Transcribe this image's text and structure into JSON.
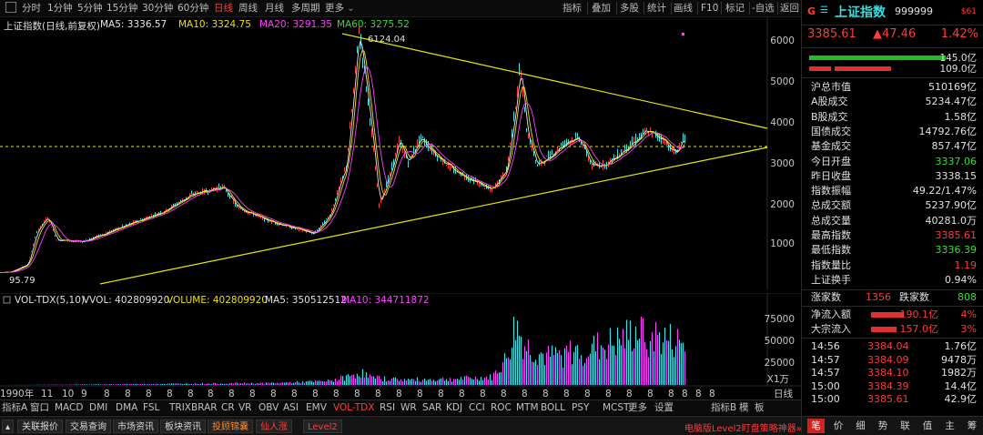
{
  "period_tabs": [
    "分时",
    "1分钟",
    "5分钟",
    "15分钟",
    "30分钟",
    "60分钟",
    "日线",
    "周线",
    "月线",
    "多周期",
    "更多"
  ],
  "period_active": "日线",
  "toolbar": [
    "指标",
    "叠加",
    "多股",
    "统计",
    "画线",
    "F10",
    "标记",
    "-自选",
    "返回"
  ],
  "ma_legend": {
    "title": "上证指数(日线,前复权)",
    "ma5": "MA5: 3336.57",
    "ma10": "MA10: 3324.75",
    "ma20": "MA20: 3291.35",
    "ma60": "MA60: 3275.52",
    "colors": {
      "ma5": "#e8e8e8",
      "ma10": "#f0e000",
      "ma20": "#ff40ff",
      "ma60": "#30e030"
    }
  },
  "price_axis": [
    "6000",
    "5000",
    "4000",
    "3000",
    "2000",
    "1000"
  ],
  "annotations": {
    "high": "6124.04",
    "low": "95.79"
  },
  "volume": {
    "legend_prefix": "VOL-TDX(5,10)",
    "vvol": "VVOL: 402809920",
    "volume": "VOLUME: 402809920",
    "ma5": "MA5: 350512512",
    "ma10": "MA10: 344711872",
    "axis": [
      "75000",
      "50000",
      "25000"
    ],
    "unit": "X1万"
  },
  "date_axis": [
    "1990年",
    "11",
    "10",
    "9",
    "8",
    "8",
    "8",
    "8",
    "8",
    "8",
    "8",
    "8",
    "8",
    "8",
    "8",
    "8",
    "8",
    "8",
    "8",
    "8",
    "8",
    "8",
    "8",
    "8",
    "8",
    "8",
    "8",
    "8",
    "8",
    "8",
    "8",
    "8",
    "8",
    "8",
    "8"
  ],
  "date_axis_right": "日线",
  "indicator_tabs": [
    "指标A",
    "窗口",
    "MACD",
    "DMI",
    "DMA",
    "FSL",
    "TRIX",
    "BRAR",
    "CR",
    "VR",
    "OBV",
    "ASI",
    "EMV",
    "VOL-TDX",
    "RSI",
    "WR",
    "SAR",
    "KDJ",
    "CCI",
    "ROC",
    "MTM",
    "BOLL",
    "PSY",
    "MCST",
    "更多",
    "设置"
  ],
  "indicator_active": "VOL-TDX",
  "indicator_right": [
    "指标B",
    "模",
    "板"
  ],
  "bottom_tabs": [
    "关联报价",
    "交易查询",
    "市场资讯",
    "板块资讯",
    "投顾锦囊",
    "仙人涨",
    "Level2"
  ],
  "bottom_promo": "电脑版Level2盯盘策略神器»",
  "right_panel": {
    "logo": "G",
    "name": "上证指数",
    "code": "999999",
    "badge": "$61",
    "price": "3385.61",
    "change": "▲47.46",
    "change_pct": "1.42%",
    "bar_up": "145.0亿",
    "bar_down": "109.0亿",
    "stats": [
      {
        "label": "沪总市值",
        "value": "510169亿",
        "color": "#e0e0e0"
      },
      {
        "label": "A股成交",
        "value": "5234.47亿",
        "color": "#e0e0e0"
      },
      {
        "label": "B股成交",
        "value": "1.58亿",
        "color": "#e0e0e0"
      },
      {
        "label": "国债成交",
        "value": "14792.76亿",
        "color": "#e0e0e0"
      },
      {
        "label": "基金成交",
        "value": "857.47亿",
        "color": "#e0e0e0"
      },
      {
        "label": "今日开盘",
        "value": "3337.06",
        "color": "#30e030"
      },
      {
        "label": "昨日收盘",
        "value": "3338.15",
        "color": "#e0e0e0"
      },
      {
        "label": "指数振幅",
        "value": "49.22/1.47%",
        "color": "#e0e0e0"
      },
      {
        "label": "总成交额",
        "value": "5237.90亿",
        "color": "#e0e0e0"
      },
      {
        "label": "总成交量",
        "value": "40281.0万",
        "color": "#e0e0e0"
      },
      {
        "label": "最高指数",
        "value": "3385.61",
        "color": "#ff3b3b"
      },
      {
        "label": "最低指数",
        "value": "3336.39",
        "color": "#30e030"
      },
      {
        "label": "指数量比",
        "value": "1.19",
        "color": "#ff3b3b"
      },
      {
        "label": "上证换手",
        "value": "0.94%",
        "color": "#e0e0e0"
      }
    ],
    "breadth": {
      "up_label": "涨家数",
      "up": "1356",
      "down_label": "跌家数",
      "down": "808"
    },
    "flows": [
      {
        "label": "净流入额",
        "value": "190.1亿",
        "pct": "4%"
      },
      {
        "label": "大宗流入",
        "value": "157.0亿",
        "pct": "3%"
      }
    ],
    "ticks": [
      {
        "time": "14:56",
        "price": "3384.04",
        "vol": "1.76亿"
      },
      {
        "time": "14:57",
        "price": "3384.09",
        "vol": "9478万"
      },
      {
        "time": "14:57",
        "price": "3384.10",
        "vol": "1982万"
      },
      {
        "time": "15:00",
        "price": "3384.39",
        "vol": "14.4亿"
      },
      {
        "time": "15:00",
        "price": "3385.61",
        "vol": "42.9亿"
      }
    ],
    "tabs": [
      "笔",
      "价",
      "细",
      "势",
      "联",
      "值",
      "主",
      "筹"
    ],
    "active_tab": "笔"
  },
  "colors": {
    "up": "#ff3b3b",
    "down": "#30e030",
    "trend": "#e8e800",
    "cyan": "#40e0e0",
    "magenta": "#ff40ff"
  }
}
